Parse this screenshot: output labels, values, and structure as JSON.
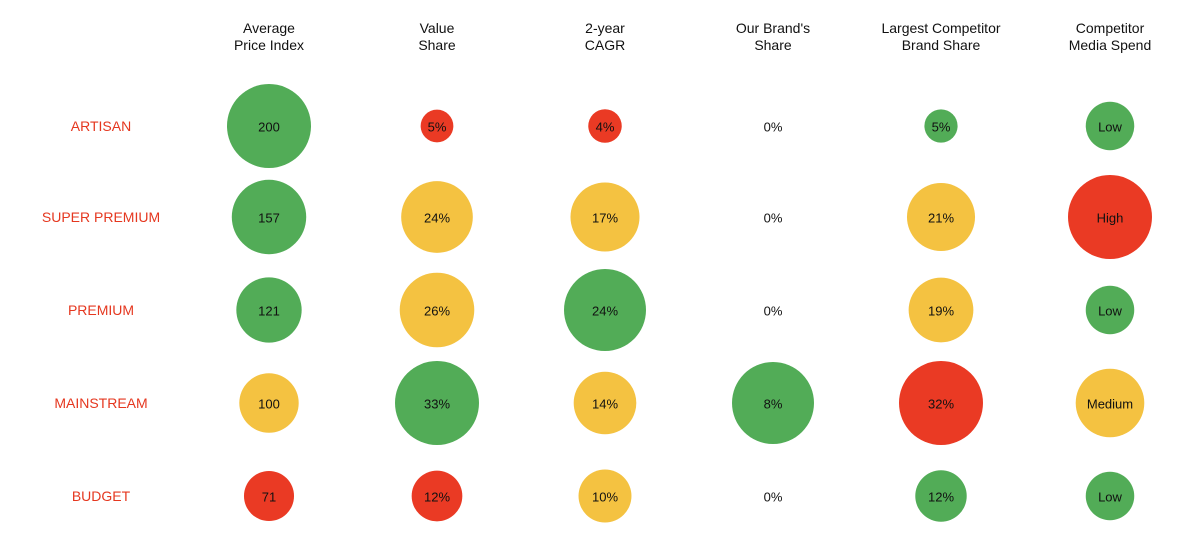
{
  "chart_data": {
    "type": "bubble-matrix",
    "columns": [
      {
        "lines": [
          "Average",
          "Price Index"
        ]
      },
      {
        "lines": [
          "Value",
          "Share"
        ]
      },
      {
        "lines": [
          "2-year",
          "CAGR"
        ]
      },
      {
        "lines": [
          "Our Brand's",
          "Share"
        ]
      },
      {
        "lines": [
          "Largest Competitor",
          "Brand Share"
        ]
      },
      {
        "lines": [
          "Competitor",
          "Media Spend"
        ]
      }
    ],
    "rows": [
      "ARTISAN",
      "SUPER PREMIUM",
      "PREMIUM",
      "MAINSTREAM",
      "BUDGET"
    ],
    "cells": [
      [
        {
          "label": "200",
          "value": 200,
          "status": "green"
        },
        {
          "label": "5%",
          "value": 5,
          "status": "red"
        },
        {
          "label": "4%",
          "value": 4,
          "status": "red"
        },
        {
          "label": "0%",
          "value": 0,
          "status": "none"
        },
        {
          "label": "5%",
          "value": 5,
          "status": "green"
        },
        {
          "label": "Low",
          "value": 1,
          "status": "green"
        }
      ],
      [
        {
          "label": "157",
          "value": 157,
          "status": "green"
        },
        {
          "label": "24%",
          "value": 24,
          "status": "amber"
        },
        {
          "label": "17%",
          "value": 17,
          "status": "amber"
        },
        {
          "label": "0%",
          "value": 0,
          "status": "none"
        },
        {
          "label": "21%",
          "value": 21,
          "status": "amber"
        },
        {
          "label": "High",
          "value": 3,
          "status": "red"
        }
      ],
      [
        {
          "label": "121",
          "value": 121,
          "status": "green"
        },
        {
          "label": "26%",
          "value": 26,
          "status": "amber"
        },
        {
          "label": "24%",
          "value": 24,
          "status": "green"
        },
        {
          "label": "0%",
          "value": 0,
          "status": "none"
        },
        {
          "label": "19%",
          "value": 19,
          "status": "amber"
        },
        {
          "label": "Low",
          "value": 1,
          "status": "green"
        }
      ],
      [
        {
          "label": "100",
          "value": 100,
          "status": "amber"
        },
        {
          "label": "33%",
          "value": 33,
          "status": "green"
        },
        {
          "label": "14%",
          "value": 14,
          "status": "amber"
        },
        {
          "label": "8%",
          "value": 8,
          "status": "green"
        },
        {
          "label": "32%",
          "value": 32,
          "status": "red"
        },
        {
          "label": "Medium",
          "value": 2,
          "status": "amber"
        }
      ],
      [
        {
          "label": "71",
          "value": 71,
          "status": "red"
        },
        {
          "label": "12%",
          "value": 12,
          "status": "red"
        },
        {
          "label": "10%",
          "value": 10,
          "status": "amber"
        },
        {
          "label": "0%",
          "value": 0,
          "status": "none"
        },
        {
          "label": "12%",
          "value": 12,
          "status": "green"
        },
        {
          "label": "Low",
          "value": 1,
          "status": "green"
        }
      ]
    ],
    "colors": {
      "green": "#52ac57",
      "amber": "#f4c241",
      "red": "#ea3a24",
      "row_label": "#e5371f"
    },
    "grid": false,
    "legend": "none"
  }
}
